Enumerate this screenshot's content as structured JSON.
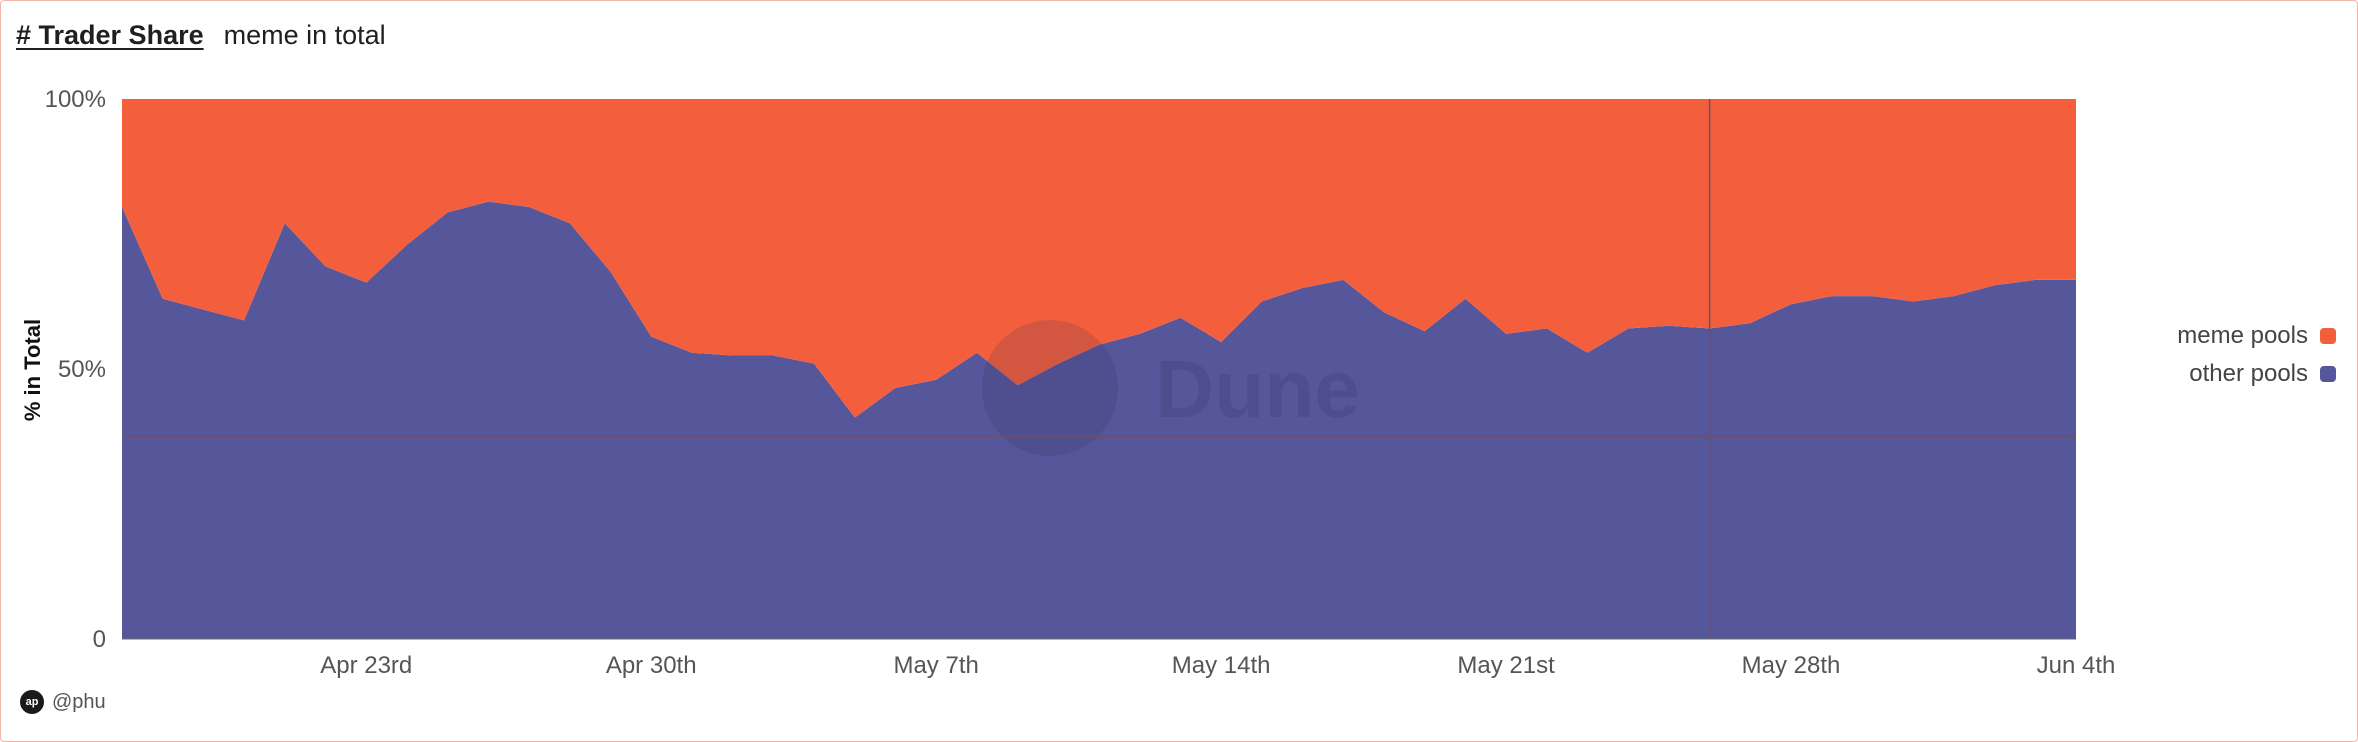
{
  "header": {
    "title": "# Trader Share",
    "subtitle": "meme in total"
  },
  "footer": {
    "avatar_initials": "ap",
    "author": "@phu"
  },
  "watermark": "Dune",
  "colors": {
    "meme": "#f35f3d",
    "other": "#56569b",
    "crosshair": "#6b4f6b",
    "axis_text": "#555555"
  },
  "chart_data": {
    "type": "area",
    "stacked": true,
    "percent": true,
    "ylabel": "% in Total",
    "yticks": [
      "0",
      "50%",
      "100%"
    ],
    "ylim": [
      0,
      100
    ],
    "x_ticks": [
      {
        "date": "2024-04-23",
        "label": "Apr 23rd"
      },
      {
        "date": "2024-04-30",
        "label": "Apr 30th"
      },
      {
        "date": "2024-05-07",
        "label": "May 7th"
      },
      {
        "date": "2024-05-14",
        "label": "May 14th"
      },
      {
        "date": "2024-05-21",
        "label": "May 21st"
      },
      {
        "date": "2024-05-28",
        "label": "May 28th"
      },
      {
        "date": "2024-06-04",
        "label": "Jun 4th"
      }
    ],
    "x": [
      "2024-04-17",
      "2024-04-18",
      "2024-04-19",
      "2024-04-20",
      "2024-04-21",
      "2024-04-22",
      "2024-04-23",
      "2024-04-24",
      "2024-04-25",
      "2024-04-26",
      "2024-04-27",
      "2024-04-28",
      "2024-04-29",
      "2024-04-30",
      "2024-05-01",
      "2024-05-02",
      "2024-05-03",
      "2024-05-04",
      "2024-05-05",
      "2024-05-06",
      "2024-05-07",
      "2024-05-08",
      "2024-05-09",
      "2024-05-10",
      "2024-05-11",
      "2024-05-12",
      "2024-05-13",
      "2024-05-14",
      "2024-05-15",
      "2024-05-16",
      "2024-05-17",
      "2024-05-18",
      "2024-05-19",
      "2024-05-20",
      "2024-05-21",
      "2024-05-22",
      "2024-05-23",
      "2024-05-24",
      "2024-05-25",
      "2024-05-26",
      "2024-05-27",
      "2024-05-28",
      "2024-05-29",
      "2024-05-30",
      "2024-05-31",
      "2024-06-01",
      "2024-06-02",
      "2024-06-03",
      "2024-06-04"
    ],
    "series": [
      {
        "name": "other pools",
        "color": "#56569b",
        "values": [
          80,
          63,
          61,
          59,
          77,
          69,
          66,
          73,
          79,
          81,
          80,
          77,
          68,
          56,
          53,
          52.5,
          52.5,
          51,
          41,
          46.5,
          48,
          53,
          47,
          51,
          54.5,
          56.5,
          59.5,
          55,
          62.5,
          65,
          66.5,
          60.5,
          57,
          63,
          56.5,
          57.5,
          53,
          57.5,
          58,
          57.5,
          58.5,
          62,
          63.5,
          63.5,
          62.5,
          63.5,
          65.5,
          66.5,
          66.5
        ]
      },
      {
        "name": "meme pools",
        "color": "#f35f3d",
        "values": [
          20,
          37,
          39,
          41,
          23,
          31,
          34,
          27,
          21,
          19,
          20,
          23,
          32,
          44,
          47,
          47.5,
          47.5,
          49,
          59,
          53.5,
          52,
          47,
          53,
          49,
          45.5,
          43.5,
          40.5,
          45,
          37.5,
          35,
          33.5,
          39.5,
          43,
          37,
          43.5,
          42.5,
          47,
          42.5,
          42,
          42.5,
          41.5,
          38,
          36.5,
          36.5,
          37.5,
          36.5,
          34.5,
          33.5,
          33.5
        ]
      }
    ],
    "legend": [
      {
        "name": "meme pools",
        "color": "#f35f3d"
      },
      {
        "name": "other pools",
        "color": "#56569b"
      }
    ],
    "legend_position": "right",
    "crosshair_date": "2024-05-26",
    "crosshair_value": 37.5,
    "grid": false
  }
}
